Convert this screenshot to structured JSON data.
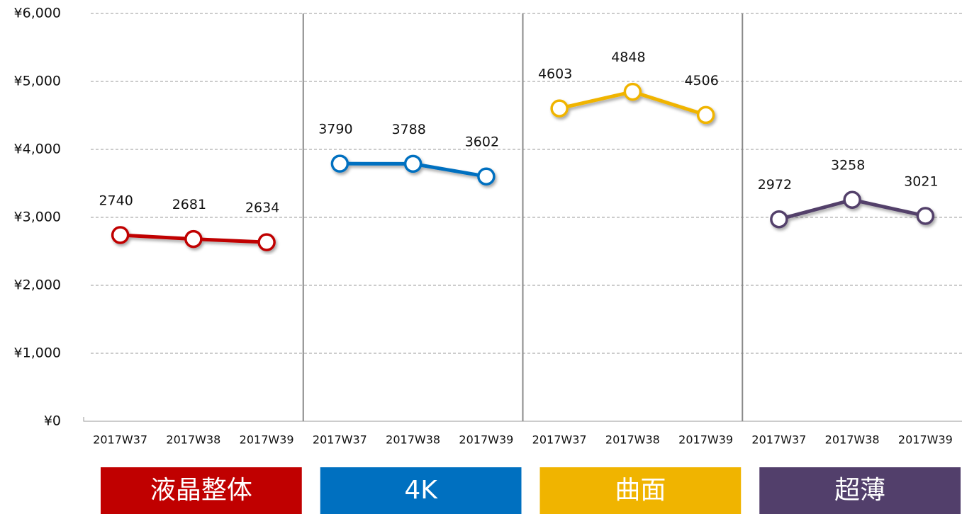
{
  "chart_data": {
    "type": "line",
    "categories": [
      "2017W37",
      "2017W38",
      "2017W39",
      "2017W37",
      "2017W38",
      "2017W39",
      "2017W37",
      "2017W38",
      "2017W39",
      "2017W37",
      "2017W38",
      "2017W39"
    ],
    "series": [
      {
        "name": "液晶整体",
        "color": "#c00000",
        "values": [
          2740,
          2681,
          2634,
          null,
          null,
          null,
          null,
          null,
          null,
          null,
          null,
          null
        ]
      },
      {
        "name": "4K",
        "color": "#0070c0",
        "values": [
          null,
          null,
          null,
          3790,
          3788,
          3602,
          null,
          null,
          null,
          null,
          null,
          null
        ]
      },
      {
        "name": "曲面",
        "color": "#f0b400",
        "values": [
          null,
          null,
          null,
          null,
          null,
          null,
          4603,
          4848,
          4506,
          null,
          null,
          null
        ]
      },
      {
        "name": "超薄",
        "color": "#523f6b",
        "values": [
          null,
          null,
          null,
          null,
          null,
          null,
          null,
          null,
          null,
          2972,
          3258,
          3021
        ]
      }
    ],
    "ylim": [
      0,
      6000
    ],
    "yticks": [
      {
        "value": 0,
        "label": "¥0"
      },
      {
        "value": 1000,
        "label": "¥1,000"
      },
      {
        "value": 2000,
        "label": "¥2,000"
      },
      {
        "value": 3000,
        "label": "¥3,000"
      },
      {
        "value": 4000,
        "label": "¥4,000"
      },
      {
        "value": 5000,
        "label": "¥5,000"
      },
      {
        "value": 6000,
        "label": "¥6,000"
      }
    ],
    "grid": true
  }
}
